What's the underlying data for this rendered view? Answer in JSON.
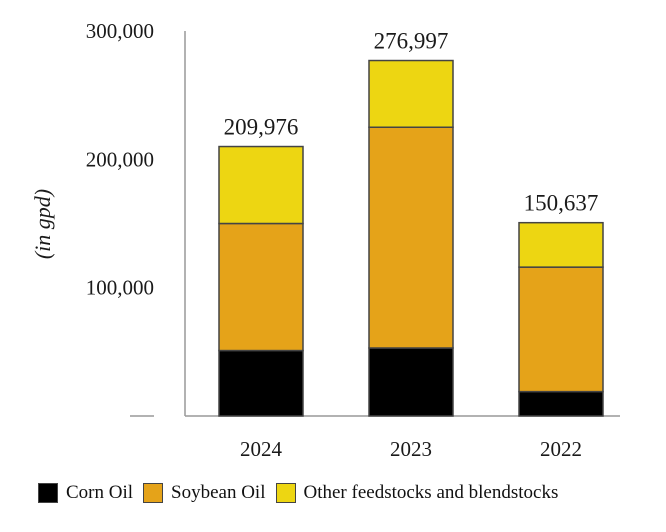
{
  "chart_data": {
    "type": "bar",
    "stacked": true,
    "categories": [
      "2024",
      "2023",
      "2022"
    ],
    "series": [
      {
        "name": "Corn Oil",
        "color": "#000000",
        "values": [
          51000,
          53000,
          19000
        ]
      },
      {
        "name": "Soybean Oil",
        "color": "#E5A319",
        "values": [
          99000,
          172000,
          97000
        ]
      },
      {
        "name": "Other feedstocks and blendstocks",
        "color": "#EDD612",
        "values": [
          59976,
          51997,
          34637
        ]
      }
    ],
    "totals": [
      "209,976",
      "276,997",
      "150,637"
    ],
    "y_ticks": [
      {
        "value": 100000,
        "label": "100,000"
      },
      {
        "value": 200000,
        "label": "200,000"
      },
      {
        "value": 300000,
        "label": "300,000"
      }
    ],
    "ylabel": "(in gpd)",
    "ylim": [
      0,
      300000
    ],
    "title": ""
  }
}
